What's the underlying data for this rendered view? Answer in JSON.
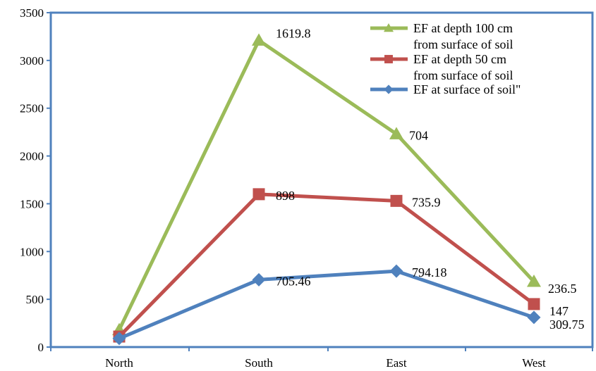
{
  "chart_data": {
    "type": "line",
    "categories": [
      "North",
      "South",
      "East",
      "West"
    ],
    "ylim": [
      0,
      3500
    ],
    "yticks": [
      0,
      500,
      1000,
      1500,
      2000,
      2500,
      3000,
      3500
    ],
    "grid": false,
    "legend_position": "top-right",
    "series": [
      {
        "name_lines": [
          "EF at depth 100 cm",
          "from surface of soil"
        ],
        "color": "#9BBB59",
        "marker": "triangle",
        "values": [
          180,
          3210,
          2230,
          685
        ],
        "labels": [
          "",
          "1619.8",
          "704",
          "236.5"
        ]
      },
      {
        "name_lines": [
          "EF at depth 50 cm",
          "from surface of soil"
        ],
        "color": "#C0504D",
        "marker": "square",
        "values": [
          110,
          1600,
          1530,
          450
        ],
        "labels": [
          "",
          "898",
          "735.9",
          "147"
        ]
      },
      {
        "name_lines": [
          "EF at surface of soil\""
        ],
        "color": "#4F81BD",
        "marker": "diamond",
        "values": [
          90,
          705,
          795,
          310
        ],
        "labels": [
          "",
          "705.46",
          "794.18",
          "309.75"
        ]
      }
    ]
  }
}
